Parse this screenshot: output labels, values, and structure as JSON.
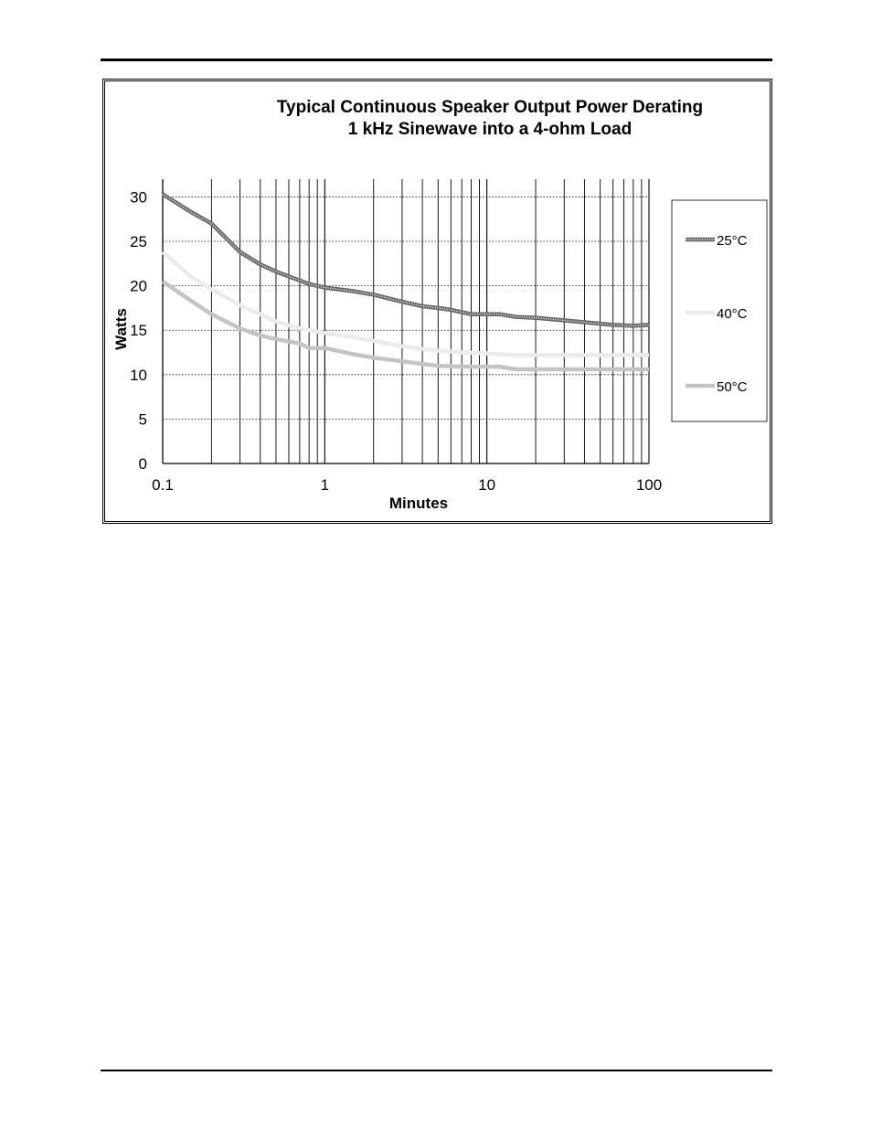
{
  "chart_data": {
    "type": "line",
    "title": [
      "Typical Continuous Speaker Output Power Derating",
      "1 kHz Sinewave into a 4-ohm Load"
    ],
    "xlabel": "Minutes",
    "ylabel": "Watts",
    "x_scale": "log",
    "xlim": [
      0.1,
      100
    ],
    "ylim": [
      0,
      32
    ],
    "x_ticks": [
      "0.1",
      "1",
      "10",
      "100"
    ],
    "y_ticks": [
      "0",
      "5",
      "10",
      "15",
      "20",
      "25",
      "30"
    ],
    "grid": true,
    "legend_position": "right",
    "series": [
      {
        "name": "25°C",
        "color": "#666666",
        "style": "dotted-band",
        "x": [
          0.1,
          0.15,
          0.2,
          0.3,
          0.4,
          0.5,
          0.7,
          0.8,
          1,
          1.5,
          2,
          3,
          4,
          5,
          6,
          8,
          10,
          12,
          15,
          20,
          30,
          40,
          60,
          80,
          100
        ],
        "y": [
          30.3,
          28.3,
          27.0,
          23.8,
          22.4,
          21.6,
          20.6,
          20.2,
          19.8,
          19.4,
          19.0,
          18.2,
          17.7,
          17.5,
          17.3,
          16.8,
          16.8,
          16.8,
          16.5,
          16.4,
          16.1,
          15.9,
          15.6,
          15.5,
          15.6
        ]
      },
      {
        "name": "40°C",
        "color": "#ebebeb",
        "style": "solid",
        "x": [
          0.1,
          0.15,
          0.2,
          0.3,
          0.4,
          0.5,
          0.7,
          1,
          1.5,
          2,
          3,
          4,
          5,
          7,
          10,
          12,
          15,
          20,
          50,
          100
        ],
        "y": [
          23.8,
          21.0,
          19.6,
          17.8,
          16.8,
          16.0,
          15.2,
          14.7,
          14.2,
          13.8,
          13.2,
          12.9,
          12.7,
          12.5,
          12.4,
          12.3,
          12.2,
          12.2,
          12.2,
          12.2
        ]
      },
      {
        "name": "50°C",
        "color": "#c4c4c4",
        "style": "solid",
        "x": [
          0.1,
          0.15,
          0.2,
          0.3,
          0.4,
          0.5,
          0.7,
          0.8,
          1,
          1.5,
          2,
          3,
          4,
          5,
          7,
          10,
          12,
          15,
          20,
          50,
          100
        ],
        "y": [
          20.5,
          18.3,
          16.8,
          15.2,
          14.4,
          14.0,
          13.5,
          13.0,
          13.0,
          12.3,
          11.9,
          11.5,
          11.2,
          11.0,
          10.9,
          10.9,
          10.9,
          10.6,
          10.6,
          10.6,
          10.6
        ]
      }
    ]
  }
}
